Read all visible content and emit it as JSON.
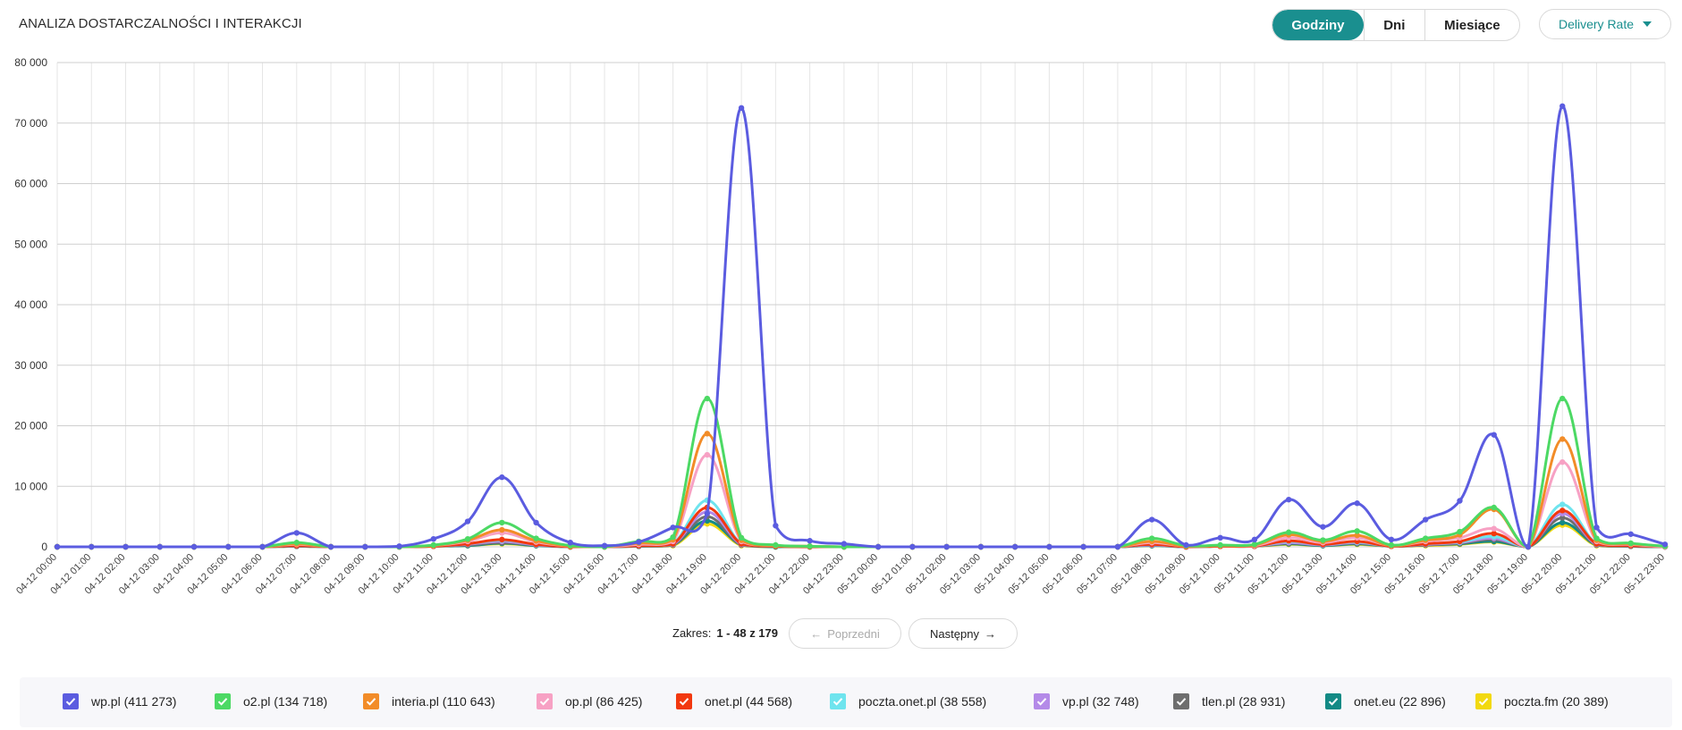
{
  "header": {
    "title": "ANALIZA DOSTARCZALNOŚCI I INTERAKCJI",
    "period_tabs": [
      {
        "label": "Godziny",
        "active": true
      },
      {
        "label": "Dni",
        "active": false
      },
      {
        "label": "Miesiące",
        "active": false
      }
    ],
    "metric_dropdown": {
      "label": "Delivery Rate",
      "icon": "caret-down-icon"
    }
  },
  "pagination": {
    "range_label": "Zakres:",
    "range_value": "1 - 48 z 179",
    "prev_label": "Poprzedni",
    "next_label": "Następny",
    "prev_icon": "arrow-left-icon",
    "next_icon": "arrow-right-icon"
  },
  "colors": {
    "accent": "#1a8f8f",
    "grid": "#d9d9d9",
    "axis_text": "#444444"
  },
  "chart_data": {
    "type": "line",
    "title": "",
    "xlabel": "",
    "ylabel": "",
    "ylim": [
      0,
      80000
    ],
    "yticks": [
      0,
      10000,
      20000,
      30000,
      40000,
      50000,
      60000,
      70000,
      80000
    ],
    "ytick_labels": [
      "0",
      "10 000",
      "20 000",
      "30 000",
      "40 000",
      "50 000",
      "60 000",
      "70 000",
      "80 000"
    ],
    "grid": true,
    "legend_placement": "bottom",
    "categories": [
      "04-12 00:00",
      "04-12 01:00",
      "04-12 02:00",
      "04-12 03:00",
      "04-12 04:00",
      "04-12 05:00",
      "04-12 06:00",
      "04-12 07:00",
      "04-12 08:00",
      "04-12 09:00",
      "04-12 10:00",
      "04-12 11:00",
      "04-12 12:00",
      "04-12 13:00",
      "04-12 14:00",
      "04-12 15:00",
      "04-12 16:00",
      "04-12 17:00",
      "04-12 18:00",
      "04-12 19:00",
      "04-12 20:00",
      "04-12 21:00",
      "04-12 22:00",
      "04-12 23:00",
      "05-12 00:00",
      "05-12 01:00",
      "05-12 02:00",
      "05-12 03:00",
      "05-12 04:00",
      "05-12 05:00",
      "05-12 06:00",
      "05-12 07:00",
      "05-12 08:00",
      "05-12 09:00",
      "05-12 10:00",
      "05-12 11:00",
      "05-12 12:00",
      "05-12 13:00",
      "05-12 14:00",
      "05-12 15:00",
      "05-12 16:00",
      "05-12 17:00",
      "05-12 18:00",
      "05-12 19:00",
      "05-12 20:00",
      "05-12 21:00",
      "05-12 22:00",
      "05-12 23:00"
    ],
    "series": [
      {
        "name": "wp.pl (411 273)",
        "color": "#5b5ce0",
        "checked": true,
        "values": [
          0,
          0,
          0,
          0,
          0,
          0,
          0,
          2300,
          0,
          0,
          100,
          1300,
          4200,
          11500,
          4000,
          700,
          200,
          800,
          3200,
          5500,
          72500,
          3500,
          1000,
          500,
          0,
          0,
          0,
          0,
          0,
          0,
          0,
          0,
          4500,
          300,
          1500,
          1200,
          7800,
          3300,
          7200,
          1200,
          4500,
          7600,
          18500,
          0,
          72800,
          3200,
          2100,
          400
        ]
      },
      {
        "name": "o2.pl (134 718)",
        "color": "#4cd964",
        "checked": true,
        "values": [
          0,
          0,
          0,
          0,
          0,
          0,
          0,
          700,
          0,
          0,
          0,
          300,
          1300,
          4000,
          1400,
          200,
          0,
          900,
          1600,
          24500,
          1500,
          300,
          100,
          0,
          0,
          0,
          0,
          0,
          0,
          0,
          0,
          0,
          1400,
          200,
          300,
          400,
          2400,
          1100,
          2600,
          300,
          1400,
          2500,
          6500,
          0,
          24500,
          1400,
          600,
          100
        ]
      },
      {
        "name": "interia.pl (110 643)",
        "color": "#f28c28",
        "checked": true,
        "values": [
          0,
          0,
          0,
          0,
          0,
          0,
          0,
          500,
          0,
          0,
          0,
          200,
          1100,
          2800,
          1000,
          100,
          0,
          600,
          1200,
          18700,
          1100,
          200,
          100,
          0,
          0,
          0,
          0,
          0,
          0,
          0,
          0,
          0,
          900,
          100,
          200,
          300,
          2000,
          900,
          1900,
          200,
          1100,
          2000,
          6200,
          0,
          17800,
          1100,
          500,
          100
        ]
      },
      {
        "name": "op.pl (86 425)",
        "color": "#f7a1c4",
        "checked": true,
        "values": [
          0,
          0,
          0,
          0,
          0,
          0,
          0,
          400,
          0,
          0,
          0,
          200,
          900,
          2300,
          800,
          100,
          0,
          400,
          900,
          15200,
          900,
          200,
          100,
          0,
          0,
          0,
          0,
          0,
          0,
          0,
          0,
          0,
          700,
          100,
          200,
          200,
          1500,
          700,
          1500,
          200,
          900,
          1500,
          3000,
          0,
          14000,
          900,
          400,
          0
        ]
      },
      {
        "name": "onet.pl (44 568)",
        "color": "#f2380f",
        "checked": true,
        "values": [
          0,
          0,
          0,
          0,
          0,
          0,
          0,
          200,
          0,
          0,
          0,
          100,
          500,
          1200,
          400,
          0,
          0,
          200,
          500,
          6500,
          500,
          100,
          0,
          0,
          0,
          0,
          0,
          0,
          0,
          0,
          0,
          0,
          400,
          0,
          100,
          100,
          1000,
          400,
          900,
          100,
          500,
          900,
          2200,
          0,
          6000,
          500,
          200,
          0
        ]
      },
      {
        "name": "poczta.onet.pl (38 558)",
        "color": "#6ee4ee",
        "checked": true,
        "values": [
          0,
          0,
          0,
          0,
          0,
          0,
          0,
          200,
          0,
          0,
          0,
          100,
          500,
          1100,
          400,
          0,
          0,
          200,
          500,
          7700,
          500,
          100,
          0,
          0,
          0,
          0,
          0,
          0,
          0,
          0,
          0,
          0,
          400,
          0,
          100,
          100,
          900,
          400,
          800,
          100,
          500,
          800,
          1700,
          0,
          7000,
          500,
          200,
          0
        ]
      },
      {
        "name": "vp.pl (32 748)",
        "color": "#b48ae8",
        "checked": true,
        "values": [
          0,
          0,
          0,
          0,
          0,
          0,
          0,
          200,
          0,
          0,
          0,
          100,
          400,
          900,
          300,
          0,
          0,
          200,
          400,
          5800,
          400,
          100,
          0,
          0,
          0,
          0,
          0,
          0,
          0,
          0,
          0,
          0,
          300,
          0,
          100,
          100,
          700,
          300,
          700,
          100,
          400,
          700,
          1400,
          0,
          5500,
          400,
          200,
          0
        ]
      },
      {
        "name": "tlen.pl (28 931)",
        "color": "#6e6e6e",
        "checked": true,
        "values": [
          0,
          0,
          0,
          0,
          0,
          0,
          0,
          100,
          0,
          0,
          0,
          100,
          300,
          700,
          300,
          0,
          0,
          100,
          300,
          5000,
          300,
          100,
          0,
          0,
          0,
          0,
          0,
          0,
          0,
          0,
          0,
          0,
          300,
          0,
          100,
          100,
          600,
          300,
          600,
          100,
          300,
          600,
          1200,
          0,
          4800,
          300,
          100,
          0
        ]
      },
      {
        "name": "onet.eu (22 896)",
        "color": "#138a85",
        "checked": true,
        "values": [
          0,
          0,
          0,
          0,
          0,
          0,
          0,
          100,
          0,
          0,
          0,
          100,
          200,
          600,
          200,
          0,
          0,
          100,
          300,
          4300,
          300,
          0,
          0,
          0,
          0,
          0,
          0,
          0,
          0,
          0,
          0,
          0,
          200,
          0,
          100,
          100,
          500,
          200,
          500,
          100,
          300,
          500,
          900,
          0,
          4000,
          300,
          100,
          0
        ]
      },
      {
        "name": "poczta.fm (20 389)",
        "color": "#f2d90f",
        "checked": true,
        "values": [
          0,
          0,
          0,
          0,
          0,
          0,
          0,
          100,
          0,
          0,
          0,
          100,
          200,
          500,
          200,
          0,
          0,
          100,
          200,
          3800,
          200,
          0,
          0,
          0,
          0,
          0,
          0,
          0,
          0,
          0,
          0,
          0,
          200,
          0,
          100,
          100,
          400,
          200,
          400,
          100,
          200,
          400,
          800,
          0,
          3600,
          200,
          100,
          0
        ]
      }
    ]
  }
}
